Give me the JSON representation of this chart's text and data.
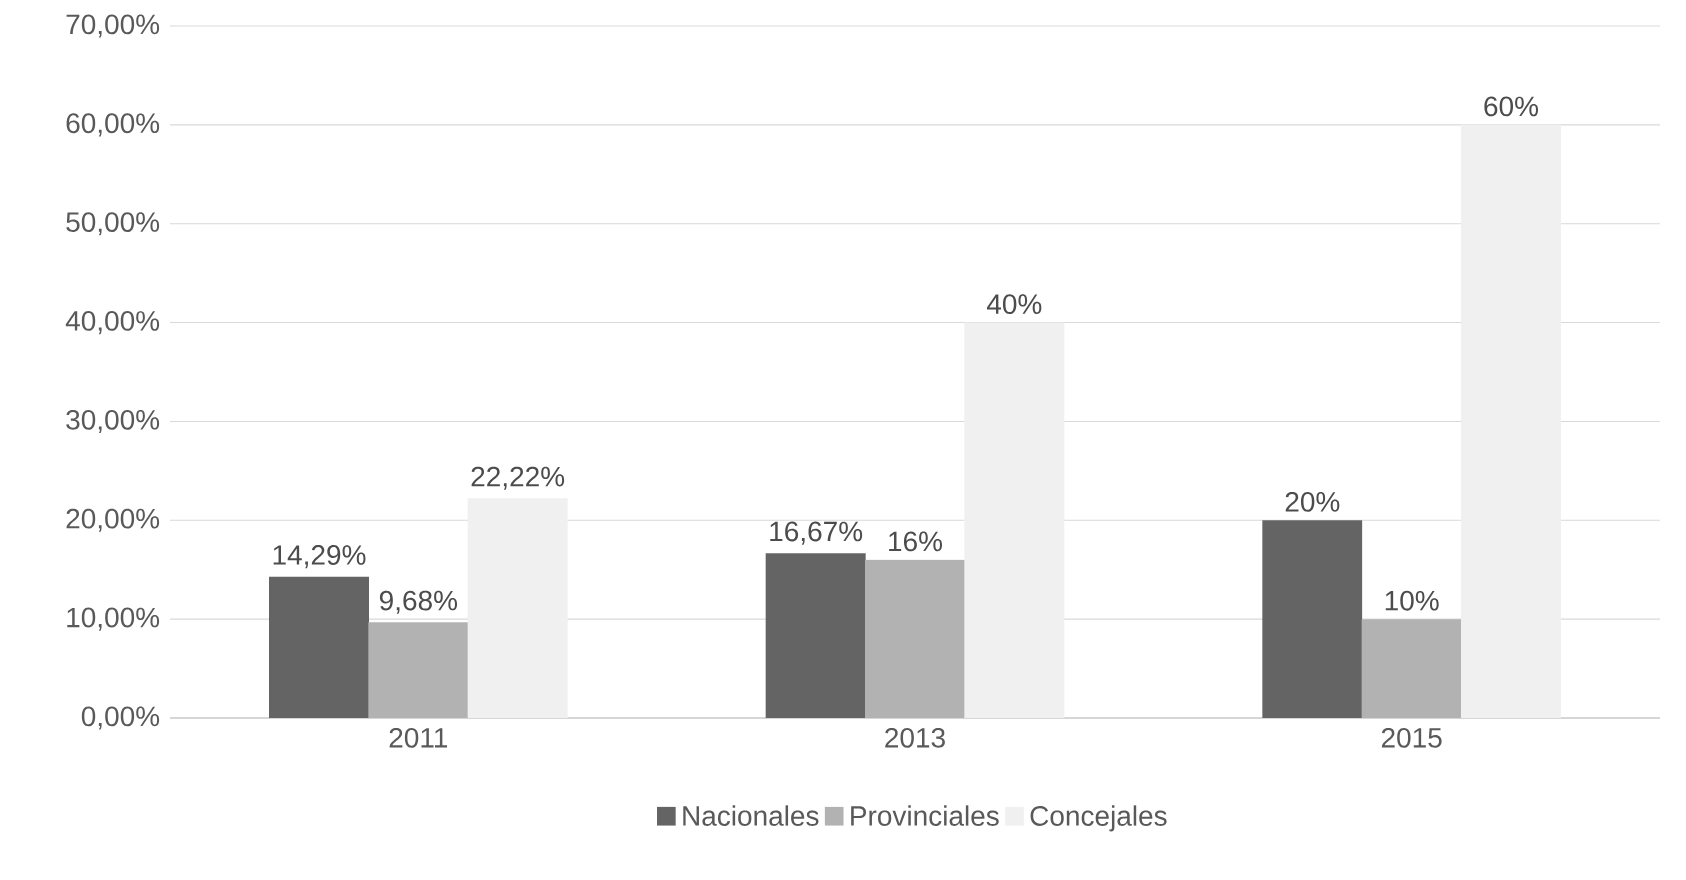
{
  "chart_data": {
    "type": "bar",
    "categories": [
      "2011",
      "2013",
      "2015"
    ],
    "series": [
      {
        "name": "Nacionales",
        "color": "#646464",
        "values": [
          14.29,
          16.67,
          20
        ],
        "value_labels": [
          "14,29%",
          "16,67%",
          "20%"
        ]
      },
      {
        "name": "Provinciales",
        "color": "#b2b2b2",
        "values": [
          9.68,
          16,
          10
        ],
        "value_labels": [
          "9,68%",
          "16%",
          "10%"
        ]
      },
      {
        "name": "Concejales",
        "color": "#f0f0f0",
        "values": [
          22.22,
          40,
          60
        ],
        "value_labels": [
          "22,22%",
          "40%",
          "60%"
        ]
      }
    ],
    "ylim": [
      0,
      70
    ],
    "yticks": [
      {
        "value": 0,
        "label": "0,00%"
      },
      {
        "value": 10,
        "label": "10,00%"
      },
      {
        "value": 20,
        "label": "20,00%"
      },
      {
        "value": 30,
        "label": "30,00%"
      },
      {
        "value": 40,
        "label": "40,00%"
      },
      {
        "value": 50,
        "label": "50,00%"
      },
      {
        "value": 60,
        "label": "60,00%"
      },
      {
        "value": 70,
        "label": "70,00%"
      }
    ],
    "grid": "y",
    "legend": "bottom"
  }
}
